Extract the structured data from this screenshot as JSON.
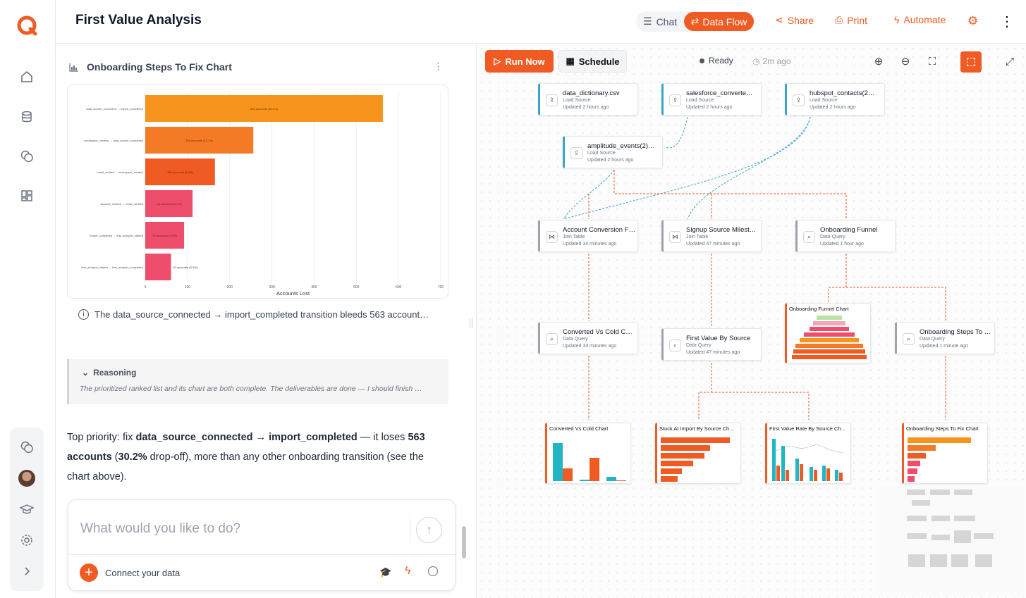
{
  "header": {
    "title": "First Value Analysis",
    "chat_label": "Chat",
    "dataflow_label": "Data Flow",
    "share_label": "Share",
    "print_label": "Print",
    "automate_label": "Automate"
  },
  "colors": {
    "accent": "#f05a23",
    "source": "#3aa5c7"
  },
  "left_panel": {
    "chart_title": "Onboarding Steps To Fix Chart",
    "note": "The data_source_connected → import_completed transition bleeds 563 account…",
    "reasoning_label": "Reasoning",
    "reasoning_text": "The prioritized ranked list and its chart are both complete. The deliverables are done — I should finish …",
    "summary_1": "Top priority: fix ",
    "summary_b1": "data_source_connected → import_completed",
    "summary_2": " — it loses ",
    "summary_b2": "563 accounts",
    "summary_3": " (",
    "summary_b3": "30.2%",
    "summary_4": " drop-off), more than any other onboarding transition (see the chart above).",
    "input_placeholder": "What would you like to do?",
    "connect_label": "Connect your data"
  },
  "chart_data": {
    "type": "bar",
    "orientation": "horizontal",
    "categories": [
      "data_source_connected → import_completed",
      "workspace_created → data_source_connected",
      "email_verified → workspace_created",
      "account_created → email_verified",
      "import_completed → first_analysis_started",
      "first_analysis_started → first_analysis_completed"
    ],
    "values": [
      563,
      256,
      165,
      112,
      92,
      61
    ],
    "labels": [
      "563 accounts (30.2%)",
      "256 accounts (13.7%)",
      "165 accounts (8.9%)",
      "112 accounts (6.0%)",
      "92 accounts (4.9%)",
      "61 accounts (3.3%)"
    ],
    "colors": [
      "#f7941d",
      "#f47a26",
      "#f05a23",
      "#ee4d6b",
      "#ee4d6b",
      "#ee4d6b"
    ],
    "xlabel": "Accounts Lost",
    "xticks": [
      0,
      100,
      200,
      300,
      400,
      500,
      600,
      700
    ],
    "xlim": [
      0,
      700
    ],
    "grid": true
  },
  "canvas": {
    "run_label": "Run Now",
    "schedule_label": "Schedule",
    "status": "Ready",
    "ago": "2m ago",
    "nodes": [
      {
        "title": "data_dictionary.csv",
        "sub": "Load Source",
        "updated": "Updated 2 hours ago"
      },
      {
        "title": "salesforce_converte…",
        "sub": "Load Source",
        "updated": "Updated 2 hours ago"
      },
      {
        "title": "hubspot_contacts(2…",
        "sub": "Load Source",
        "updated": "Updated 2 hours ago"
      },
      {
        "title": "amplitude_events(2)…",
        "sub": "Load Source",
        "updated": "Updated 2 hours ago"
      },
      {
        "title": "Account Conversion F…",
        "sub": "Join Table",
        "updated": "Updated 34 minutes ago"
      },
      {
        "title": "Signup Source Milest…",
        "sub": "Join Table",
        "updated": "Updated 47 minutes ago"
      },
      {
        "title": "Onboarding Funnel",
        "sub": "Data Query",
        "updated": "Updated 1 hour ago"
      },
      {
        "title": "Converted Vs Cold C…",
        "sub": "Data Query",
        "updated": "Updated 33 minutes ago"
      },
      {
        "title": "First Value By Source",
        "sub": "Data Query",
        "updated": "Updated 47 minutes ago"
      },
      {
        "title": "Onboarding Steps To …",
        "sub": "Data Query",
        "updated": "Updated 1 minute ago"
      }
    ],
    "chart_nodes": [
      "Onboarding Funnel Chart",
      "Converted Vs Cold Chart",
      "Stuck At Import By Source Ch…",
      "First Value Rate By Source Ch…",
      "Onboarding Steps To Fix Chart"
    ]
  }
}
